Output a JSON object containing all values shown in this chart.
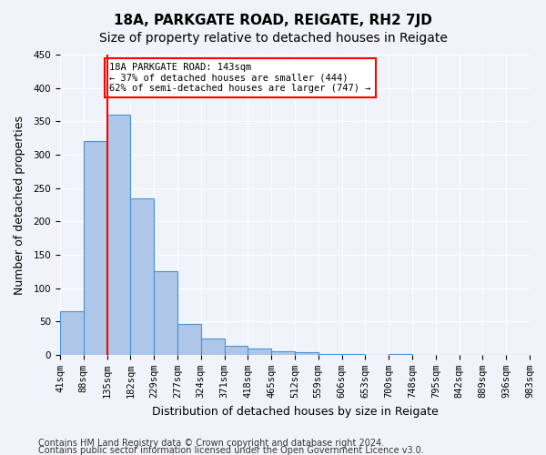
{
  "title": "18A, PARKGATE ROAD, REIGATE, RH2 7JD",
  "subtitle": "Size of property relative to detached houses in Reigate",
  "xlabel": "Distribution of detached houses by size in Reigate",
  "ylabel": "Number of detached properties",
  "bin_labels": [
    "41sqm",
    "88sqm",
    "135sqm",
    "182sqm",
    "229sqm",
    "277sqm",
    "324sqm",
    "371sqm",
    "418sqm",
    "465sqm",
    "512sqm",
    "559sqm",
    "606sqm",
    "653sqm",
    "700sqm",
    "748sqm",
    "795sqm",
    "842sqm",
    "889sqm",
    "936sqm",
    "983sqm"
  ],
  "bar_values": [
    65,
    320,
    360,
    235,
    125,
    47,
    24,
    14,
    10,
    5,
    4,
    2,
    1,
    0,
    2,
    0,
    0,
    0,
    0,
    0
  ],
  "bar_color": "#aec6e8",
  "bar_edge_color": "#4a90d9",
  "red_line_index": 2,
  "annotation_text": "18A PARKGATE ROAD: 143sqm\n← 37% of detached houses are smaller (444)\n62% of semi-detached houses are larger (747) →",
  "annotation_box_color": "white",
  "annotation_box_edge_color": "red",
  "ylim": [
    0,
    450
  ],
  "yticks": [
    0,
    50,
    100,
    150,
    200,
    250,
    300,
    350,
    400,
    450
  ],
  "footer_line1": "Contains HM Land Registry data © Crown copyright and database right 2024.",
  "footer_line2": "Contains public sector information licensed under the Open Government Licence v3.0.",
  "background_color": "#f0f4fa",
  "grid_color": "white",
  "title_fontsize": 11,
  "subtitle_fontsize": 10,
  "axis_label_fontsize": 9,
  "tick_fontsize": 7.5,
  "footer_fontsize": 7
}
